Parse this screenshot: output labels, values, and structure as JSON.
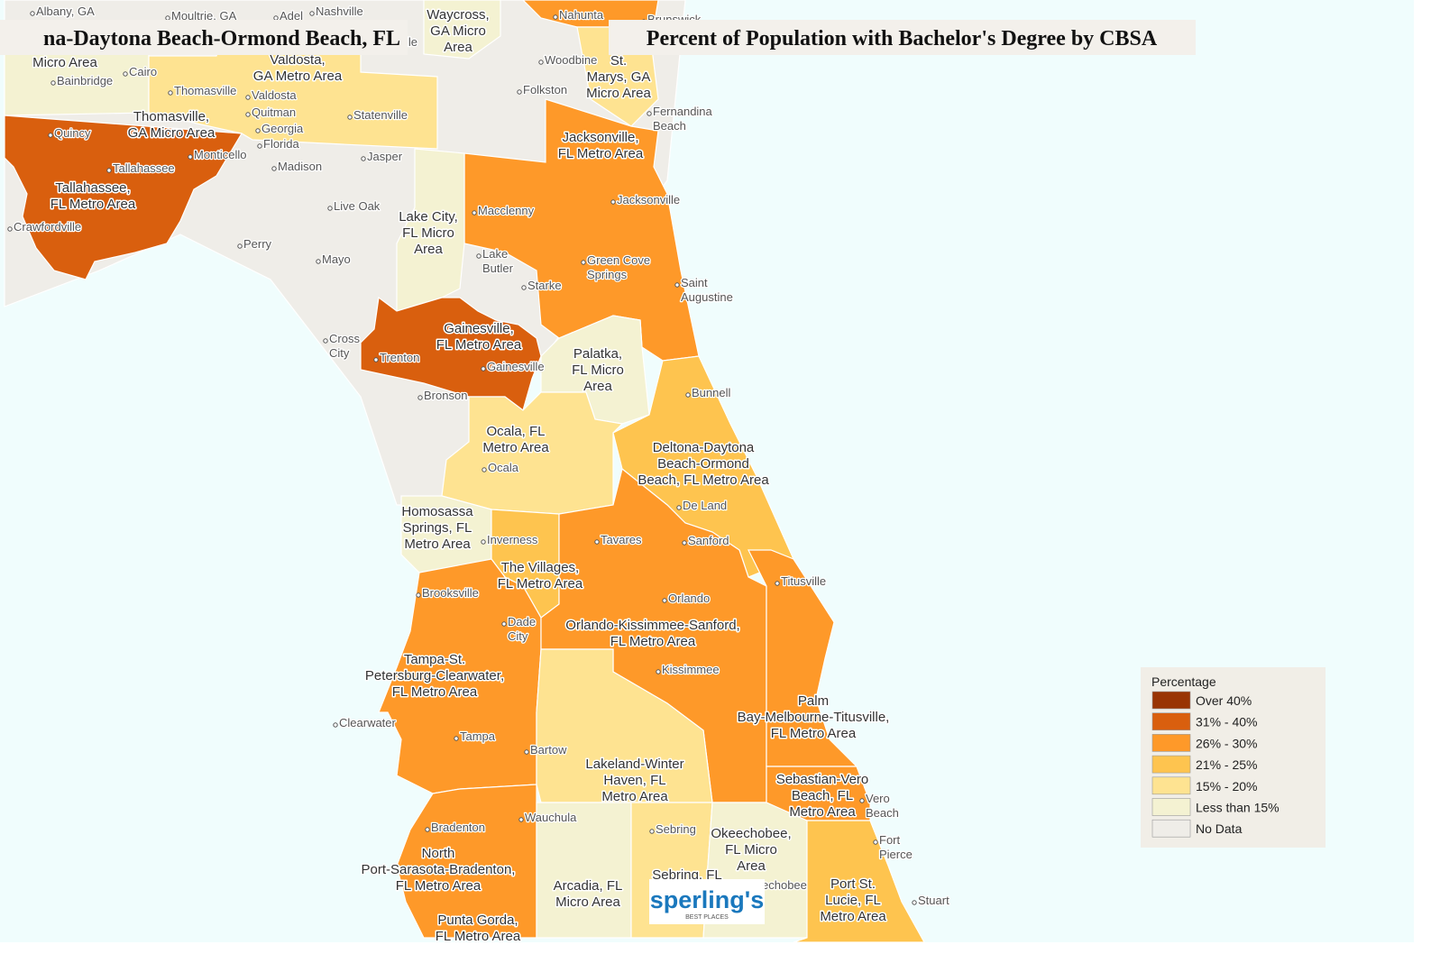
{
  "header": {
    "area_name": "na-Daytona Beach-Ormond Beach, FL",
    "title": "Percent of Population with Bachelor's Degree by CBSA"
  },
  "legend": {
    "title": "Percentage",
    "items": [
      {
        "label": "Over 40%",
        "color": "#993404"
      },
      {
        "label": "31% - 40%",
        "color": "#d95f0e"
      },
      {
        "label": "26% - 30%",
        "color": "#fe9929"
      },
      {
        "label": "21% - 25%",
        "color": "#fec44f"
      },
      {
        "label": "15% - 20%",
        "color": "#fee391"
      },
      {
        "label": "Less than 15%",
        "color": "#f4f2d2"
      },
      {
        "label": "No Data",
        "color": "#efede8"
      }
    ]
  },
  "regions": [
    [
      "Micro Area"
    ],
    [
      "Thomasville,",
      "GA Micro Area"
    ],
    [
      "Valdosta,",
      "GA Metro Area"
    ],
    [
      "Waycross,",
      "GA Micro",
      "Area"
    ],
    [
      "St.",
      "Marys, GA",
      "Micro Area"
    ],
    [
      "Jacksonville,",
      "FL Metro Area"
    ],
    [
      "Tallahassee,",
      "FL Metro Area"
    ],
    [
      "Lake City,",
      "FL Micro",
      "Area"
    ],
    [
      "Gainesville,",
      "FL Metro Area"
    ],
    [
      "Palatka,",
      "FL Micro",
      "Area"
    ],
    [
      "Ocala, FL",
      "Metro Area"
    ],
    [
      "Deltona-Daytona",
      "Beach-Ormond",
      "Beach, FL Metro Area"
    ],
    [
      "Homosassa",
      "Springs, FL",
      "Metro Area"
    ],
    [
      "The Villages,",
      "FL Metro Area"
    ],
    [
      "Orlando-Kissimmee-Sanford,",
      "FL Metro Area"
    ],
    [
      "Tampa-St.",
      "Petersburg-Clearwater,",
      "FL Metro Area"
    ],
    [
      "Palm",
      "Bay-Melbourne-Titusville,",
      "FL Metro Area"
    ],
    [
      "Lakeland-Winter",
      "Haven, FL",
      "Metro Area"
    ],
    [
      "Sebastian-Vero",
      "Beach, FL",
      "Metro Area"
    ],
    [
      "North",
      "Port-Sarasota-Bradenton,",
      "FL Metro Area"
    ],
    [
      "Arcadia, FL",
      "Micro Area"
    ],
    [
      "Okeechobee,",
      "FL Micro",
      "Area"
    ],
    [
      "Port St.",
      "Lucie, FL",
      "Metro Area"
    ],
    [
      "Punta Gorda,",
      "FL Metro Area"
    ],
    [
      "Sebring, FL"
    ]
  ],
  "cities": [
    [
      "Albany, GA"
    ],
    [
      "Moultrie, GA"
    ],
    [
      "Adel"
    ],
    [
      "Nashville"
    ],
    [
      "Nahunta"
    ],
    [
      "Brunswick"
    ],
    [
      "Cairo"
    ],
    [
      "Bainbridge"
    ],
    [
      "Thomasville"
    ],
    [
      "Valdosta"
    ],
    [
      "Quitman"
    ],
    [
      "Statenville"
    ],
    [
      "Georgia"
    ],
    [
      "Florida"
    ],
    [
      "Quincy"
    ],
    [
      "Monticello"
    ],
    [
      "Tallahassee"
    ],
    [
      "Crawfordville"
    ],
    [
      "Madison"
    ],
    [
      "Jasper"
    ],
    [
      "Live Oak"
    ],
    [
      "Perry"
    ],
    [
      "Mayo"
    ],
    [
      "Folkston"
    ],
    [
      "Woodbine"
    ],
    [
      "Fernandina",
      "Beach"
    ],
    [
      "Jacksonville"
    ],
    [
      "Macclenny"
    ],
    [
      "Green Cove",
      "Springs"
    ],
    [
      "Saint",
      "Augustine"
    ],
    [
      "Lake",
      "Butler"
    ],
    [
      "Starke"
    ],
    [
      "Cross",
      "City"
    ],
    [
      "Trenton"
    ],
    [
      "Gainesville"
    ],
    [
      "Bronson"
    ],
    [
      "Bunnell"
    ],
    [
      "Ocala"
    ],
    [
      "De Land"
    ],
    [
      "Inverness"
    ],
    [
      "Tavares"
    ],
    [
      "Sanford"
    ],
    [
      "Titusville"
    ],
    [
      "Orlando"
    ],
    [
      "Brooksville"
    ],
    [
      "Dade",
      "City"
    ],
    [
      "Kissimmee"
    ],
    [
      "Clearwater"
    ],
    [
      "Tampa"
    ],
    [
      "Bartow"
    ],
    [
      "Wauchula"
    ],
    [
      "Sebring"
    ],
    [
      "Bradenton"
    ],
    [
      "Vero",
      "Beach"
    ],
    [
      "Fort",
      "Pierce"
    ],
    [
      "Stuart"
    ],
    [
      "echobee"
    ],
    [
      "lle"
    ]
  ],
  "logo": {
    "name": "sperling's",
    "tagline": "BEST PLACES"
  }
}
